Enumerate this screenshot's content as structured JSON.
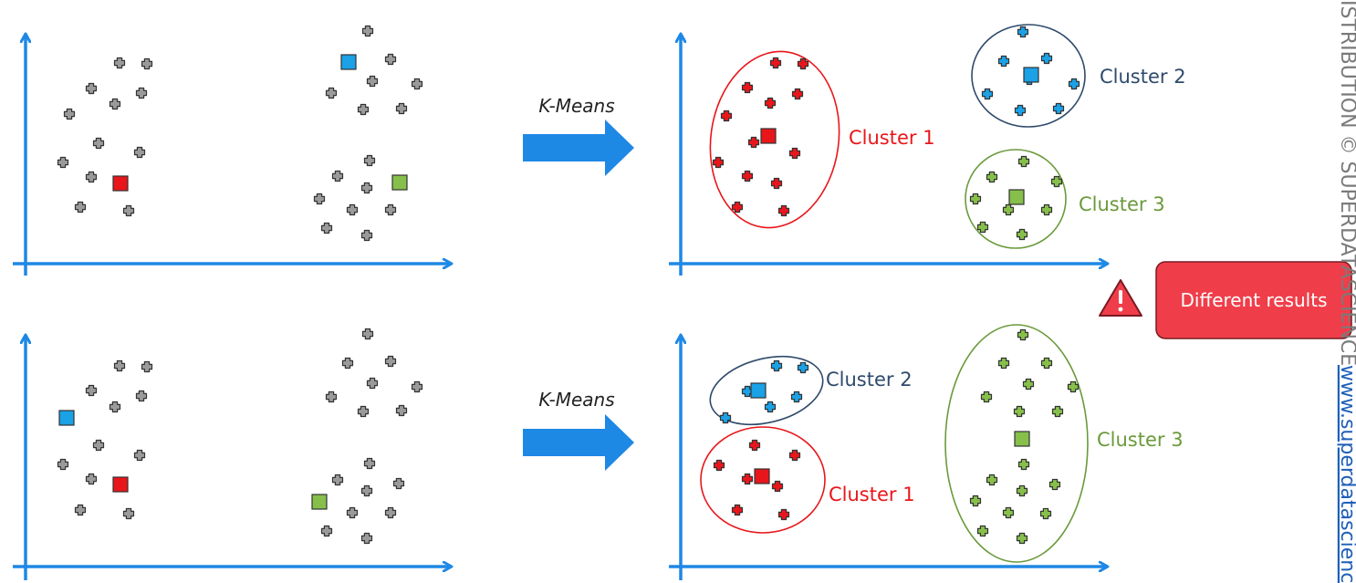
{
  "colors": {
    "axis": "#1e88e5",
    "arrow": "#1e88e5",
    "neutral_point": "#9a9a9a",
    "red": "#e8161b",
    "blue": "#1aa1e6",
    "green": "#86bf4a",
    "cluster2_outline": "#2f4a6b",
    "cluster3_outline": "#6a9a3b",
    "warning_bg": "#ef3e4a",
    "side_text": "#7a7a7a",
    "link": "#1e5fb8"
  },
  "arrow_label": "K-Means",
  "warning": {
    "text": "Different results",
    "icon": "warning-triangle-icon"
  },
  "side_text": {
    "copyright": "ISTRIBUTION © SUPERDATASCIENCE",
    "url": "www.superdatascienc"
  },
  "rows": [
    {
      "before": {
        "points": [
          [
            131,
            69
          ],
          [
            161,
            70
          ],
          [
            100,
            97
          ],
          [
            155,
            102
          ],
          [
            126,
            114
          ],
          [
            76,
            125
          ],
          [
            108,
            157
          ],
          [
            153,
            167
          ],
          [
            69,
            178
          ],
          [
            100,
            194
          ],
          [
            88,
            227
          ],
          [
            141,
            231
          ],
          [
            403,
            34
          ],
          [
            428,
            65
          ],
          [
            363,
            102
          ],
          [
            408,
            89
          ],
          [
            457,
            92
          ],
          [
            398,
            120
          ],
          [
            440,
            119
          ],
          [
            405,
            176
          ],
          [
            370,
            193
          ],
          [
            402,
            206
          ],
          [
            350,
            218
          ],
          [
            386,
            230
          ],
          [
            428,
            230
          ],
          [
            358,
            250
          ],
          [
            402,
            258
          ]
        ],
        "centroids": [
          {
            "color": "red",
            "x": 132,
            "y": 201
          },
          {
            "color": "blue",
            "x": 382,
            "y": 68
          },
          {
            "color": "green",
            "x": 438,
            "y": 200
          }
        ]
      },
      "after": {
        "clusters": [
          {
            "label": "Cluster 1",
            "color": "red",
            "outline": "red",
            "label_xy": [
              930,
              158
            ],
            "ellipse": {
              "cx": 849,
              "cy": 153,
              "rx": 70,
              "ry": 97,
              "rot": 8
            },
            "points": [
              [
                850,
                69
              ],
              [
                880,
                70
              ],
              [
                819,
                96
              ],
              [
                874,
                103
              ],
              [
                844,
                113
              ],
              [
                796,
                127
              ],
              [
                826,
                156
              ],
              [
                871,
                168
              ],
              [
                787,
                178
              ],
              [
                819,
                193
              ],
              [
                851,
                201
              ],
              [
                808,
                227
              ],
              [
                859,
                231
              ]
            ],
            "centroid": [
              842,
              149
            ]
          },
          {
            "label": "Cluster 2",
            "color": "blue",
            "outline": "cluster2_outline",
            "label_xy": [
              1205,
              91
            ],
            "ellipse": {
              "cx": 1127,
              "cy": 83,
              "rx": 62,
              "ry": 56,
              "rot": 0
            },
            "points": [
              [
                1121,
                35
              ],
              [
                1100,
                67
              ],
              [
                1147,
                64
              ],
              [
                1177,
                92
              ],
              [
                1128,
                87
              ],
              [
                1082,
                103
              ],
              [
                1118,
                121
              ],
              [
                1160,
                119
              ]
            ],
            "centroid": [
              1130,
              82
            ]
          },
          {
            "label": "Cluster 3",
            "color": "green",
            "outline": "cluster3_outline",
            "label_xy": [
              1182,
              231
            ],
            "ellipse": {
              "cx": 1113,
              "cy": 218,
              "rx": 55,
              "ry": 54,
              "rot": 0
            },
            "points": [
              [
                1122,
                177
              ],
              [
                1087,
                194
              ],
              [
                1158,
                199
              ],
              [
                1069,
                218
              ],
              [
                1105,
                230
              ],
              [
                1147,
                230
              ],
              [
                1077,
                249
              ],
              [
                1120,
                257
              ]
            ],
            "centroid": [
              1114,
              216
            ]
          }
        ]
      }
    },
    {
      "before": {
        "points": [
          [
            131,
            401
          ],
          [
            161,
            402
          ],
          [
            100,
            428
          ],
          [
            155,
            434
          ],
          [
            126,
            446
          ],
          [
            108,
            488
          ],
          [
            153,
            499
          ],
          [
            69,
            509
          ],
          [
            100,
            525
          ],
          [
            88,
            559
          ],
          [
            141,
            563
          ],
          [
            403,
            366
          ],
          [
            381,
            398
          ],
          [
            428,
            396
          ],
          [
            363,
            435
          ],
          [
            408,
            420
          ],
          [
            457,
            424
          ],
          [
            398,
            451
          ],
          [
            440,
            450
          ],
          [
            405,
            508
          ],
          [
            370,
            526
          ],
          [
            402,
            538
          ],
          [
            437,
            530
          ],
          [
            386,
            562
          ],
          [
            428,
            562
          ],
          [
            358,
            582
          ],
          [
            402,
            590
          ]
        ],
        "centroids": [
          {
            "color": "red",
            "x": 132,
            "y": 531
          },
          {
            "color": "blue",
            "x": 73,
            "y": 458
          },
          {
            "color": "green",
            "x": 350,
            "y": 550
          }
        ]
      },
      "after": {
        "clusters": [
          {
            "label": "Cluster 2",
            "color": "blue",
            "outline": "cluster2_outline",
            "label_xy": [
              905,
              423
            ],
            "ellipse": {
              "cx": 840,
              "cy": 428,
              "rx": 63,
              "ry": 35,
              "rot": -14
            },
            "points": [
              [
                851,
                401
              ],
              [
                880,
                403
              ],
              [
                819,
                429
              ],
              [
                873,
                435
              ],
              [
                844,
                446
              ],
              [
                795,
                458
              ]
            ],
            "centroid": [
              831,
              428
            ]
          },
          {
            "label": "Cluster 1",
            "color": "red",
            "outline": "red",
            "label_xy": [
              908,
              549
            ],
            "ellipse": {
              "cx": 836,
              "cy": 526,
              "rx": 68,
              "ry": 58,
              "rot": 0
            },
            "points": [
              [
                827,
                488
              ],
              [
                871,
                499
              ],
              [
                788,
                510
              ],
              [
                819,
                525
              ],
              [
                852,
                533
              ],
              [
                808,
                559
              ],
              [
                859,
                564
              ]
            ],
            "centroid": [
              835,
              522
            ]
          },
          {
            "label": "Cluster 3",
            "color": "green",
            "outline": "cluster3_outline",
            "label_xy": [
              1202,
              489
            ],
            "ellipse": {
              "cx": 1114,
              "cy": 486,
              "rx": 78,
              "ry": 130,
              "rot": 0
            },
            "points": [
              [
                1121,
                367
              ],
              [
                1100,
                398
              ],
              [
                1147,
                398
              ],
              [
                1081,
                435
              ],
              [
                1127,
                421
              ],
              [
                1176,
                424
              ],
              [
                1117,
                451
              ],
              [
                1159,
                451
              ],
              [
                1122,
                509
              ],
              [
                1087,
                526
              ],
              [
                1120,
                538
              ],
              [
                1156,
                531
              ],
              [
                1069,
                549
              ],
              [
                1105,
                562
              ],
              [
                1146,
                563
              ],
              [
                1077,
                582
              ],
              [
                1120,
                590
              ]
            ],
            "centroid": [
              1120,
              481
            ]
          }
        ]
      }
    }
  ]
}
